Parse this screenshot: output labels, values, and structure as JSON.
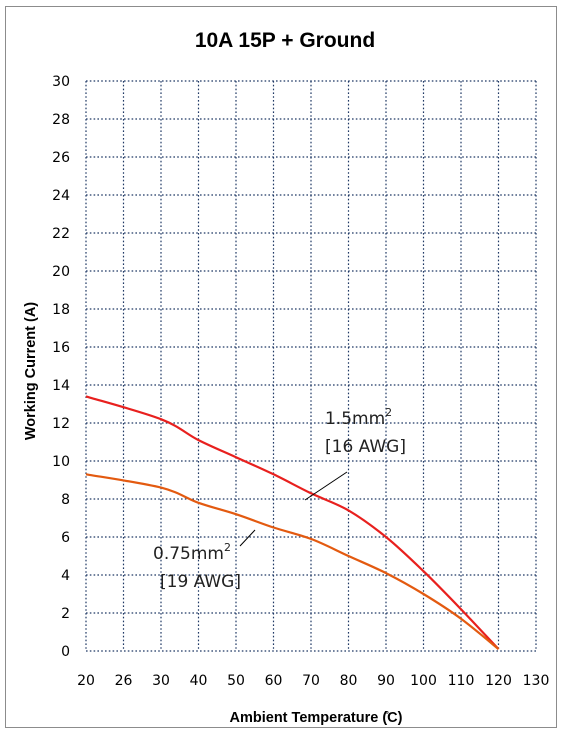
{
  "chart_data": {
    "type": "line",
    "title": "10A 15P + Ground",
    "xlabel": "Ambient Temperature (̊C)",
    "ylabel": "Working Current (A)",
    "x_ticks": [
      20,
      26,
      30,
      40,
      50,
      60,
      70,
      80,
      90,
      100,
      110,
      120,
      130
    ],
    "y_ticks": [
      0,
      2,
      4,
      6,
      8,
      10,
      12,
      14,
      16,
      18,
      20,
      22,
      24,
      26,
      28,
      30
    ],
    "ylim": [
      0,
      30
    ],
    "grid": true,
    "series": [
      {
        "name_line1": "1.5mm",
        "name_sup": "2",
        "name_line2": "[16 AWG]",
        "color": "#e8201e",
        "x": [
          20,
          30,
          40,
          50,
          60,
          70,
          80,
          90,
          100,
          110,
          120
        ],
        "y": [
          13.4,
          12.2,
          11.1,
          10.2,
          9.3,
          8.3,
          7.4,
          6.0,
          4.2,
          2.2,
          0.1
        ]
      },
      {
        "name_line1": "0.75mm",
        "name_sup": "2",
        "name_line2": "[19 AWG]",
        "color": "#e35a10",
        "x": [
          20,
          30,
          40,
          50,
          60,
          70,
          80,
          90,
          100,
          110,
          120
        ],
        "y": [
          9.3,
          8.6,
          7.8,
          7.2,
          6.5,
          5.9,
          5.0,
          4.1,
          3.0,
          1.7,
          0.1
        ]
      }
    ]
  }
}
